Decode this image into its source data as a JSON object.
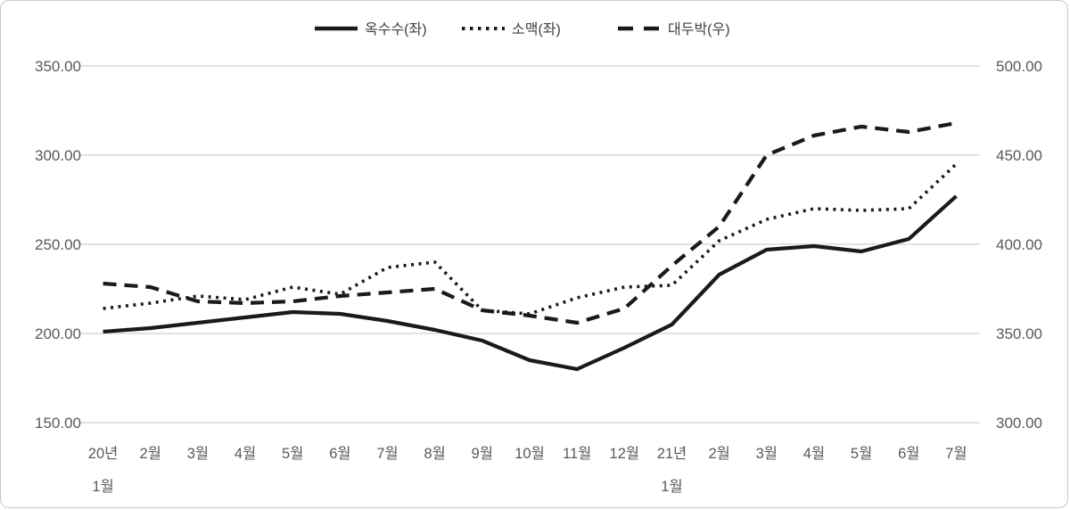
{
  "chart_data": {
    "type": "line",
    "title": "",
    "categories": [
      [
        "20년",
        "1월"
      ],
      [
        "2월"
      ],
      [
        "3월"
      ],
      [
        "4월"
      ],
      [
        "5월"
      ],
      [
        "6월"
      ],
      [
        "7월"
      ],
      [
        "8월"
      ],
      [
        "9월"
      ],
      [
        "10월"
      ],
      [
        "11월"
      ],
      [
        "12월"
      ],
      [
        "21년",
        "1월"
      ],
      [
        "2월"
      ],
      [
        "3월"
      ],
      [
        "4월"
      ],
      [
        "5월"
      ],
      [
        "6월"
      ],
      [
        "7월"
      ]
    ],
    "series": [
      {
        "name": "옥수수(좌)",
        "axis": "left",
        "line_style": "solid",
        "color": "#1a1a1a",
        "values": [
          201,
          203,
          206,
          209,
          212,
          211,
          207,
          202,
          196,
          185,
          180,
          192,
          205,
          233,
          247,
          249,
          246,
          253,
          277
        ]
      },
      {
        "name": "소맥(좌)",
        "axis": "left",
        "line_style": "dotted",
        "color": "#1a1a1a",
        "values": [
          214,
          217,
          221,
          219,
          226,
          222,
          237,
          240,
          213,
          211,
          220,
          226,
          227,
          252,
          264,
          270,
          269,
          270,
          295
        ]
      },
      {
        "name": "대두박(우)",
        "axis": "right",
        "line_style": "dashed",
        "color": "#1a1a1a",
        "values": [
          378,
          376,
          368,
          367,
          368,
          371,
          373,
          375,
          363,
          360,
          356,
          364,
          388,
          410,
          450,
          461,
          466,
          463,
          468
        ]
      }
    ],
    "left_axis": {
      "min": 150,
      "max": 350,
      "tick_step": 50,
      "ticks": [
        "350.00",
        "300.00",
        "250.00",
        "200.00",
        "150.00"
      ]
    },
    "right_axis": {
      "min": 300,
      "max": 500,
      "tick_step": 50,
      "ticks": [
        "500.00",
        "450.00",
        "400.00",
        "350.00",
        "300.00"
      ]
    },
    "grid": true,
    "legend_position": "top",
    "styles": {
      "background": "#ffffff",
      "grid_color": "#d9d9d9",
      "tick_label_color": "#595959",
      "legend_text_color": "#404040",
      "series_color": "#1a1a1a"
    }
  }
}
